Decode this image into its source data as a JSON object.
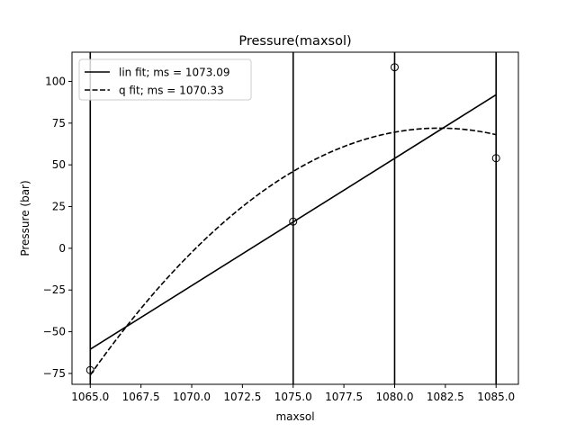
{
  "chart_data": {
    "type": "line",
    "title": "Pressure(maxsol)",
    "xlabel": "maxsol",
    "ylabel": "Pressure (bar)",
    "xlim": [
      1064.1,
      1086.1
    ],
    "ylim": [
      -81.5,
      117.5
    ],
    "x_ticks": [
      1065.0,
      1067.5,
      1070.0,
      1072.5,
      1075.0,
      1077.5,
      1080.0,
      1082.5,
      1085.0
    ],
    "x_tick_labels": [
      "1065.0",
      "1067.5",
      "1070.0",
      "1072.5",
      "1075.0",
      "1077.5",
      "1080.0",
      "1082.5",
      "1085.0"
    ],
    "y_ticks": [
      -75,
      -50,
      -25,
      0,
      25,
      50,
      75,
      100
    ],
    "y_tick_labels": [
      "−75",
      "−50",
      "−25",
      "0",
      "25",
      "50",
      "75",
      "100"
    ],
    "grid": false,
    "legend_position": "top-left",
    "vertical_lines": [
      1065,
      1075,
      1080,
      1085
    ],
    "points": {
      "x": [
        1065,
        1075,
        1080,
        1085
      ],
      "y": [
        -73,
        16,
        108.5,
        54
      ]
    },
    "series": [
      {
        "name": "lin fit; ms = 1073.09",
        "style": "solid",
        "color": "#000000",
        "x": [
          1065,
          1085
        ],
        "y": [
          -60.5,
          92
        ]
      },
      {
        "name": "q fit; ms = 1070.33",
        "style": "dashed",
        "color": "#000000",
        "quadratic": {
          "vertex_x": 1082.2,
          "vertex_y": 72.0,
          "a": -0.5
        },
        "x_range": [
          1065,
          1085
        ]
      }
    ]
  }
}
